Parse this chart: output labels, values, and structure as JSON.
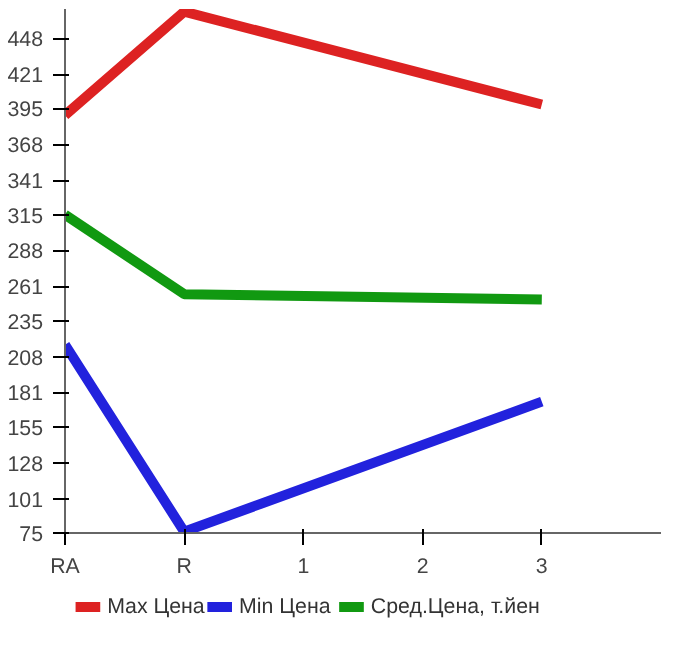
{
  "chart_data": {
    "type": "line",
    "categories": [
      "RA",
      "R",
      "1",
      "2",
      "3"
    ],
    "series": [
      {
        "name": "Max Цена",
        "color": "#dd2222",
        "values": [
          390,
          468,
          null,
          null,
          398
        ]
      },
      {
        "name": "Min Цена",
        "color": "#2222dd",
        "values": [
          217,
          76,
          null,
          null,
          174
        ]
      },
      {
        "name": "Сред.Цена, т.йен",
        "color": "#119911",
        "values": [
          315,
          255,
          null,
          null,
          251
        ]
      }
    ],
    "ylim": [
      75,
      470
    ],
    "yticks": [
      75,
      101,
      128,
      155,
      181,
      208,
      235,
      261,
      288,
      315,
      341,
      368,
      395,
      421,
      448
    ],
    "grid": false,
    "legend": "bottom",
    "marker": "none",
    "line_style": "solid"
  }
}
